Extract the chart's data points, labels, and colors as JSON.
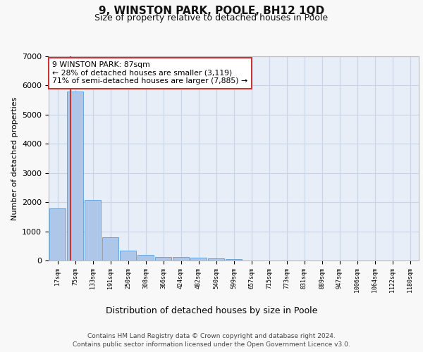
{
  "title": "9, WINSTON PARK, POOLE, BH12 1QD",
  "subtitle": "Size of property relative to detached houses in Poole",
  "xlabel": "Distribution of detached houses by size in Poole",
  "ylabel": "Number of detached properties",
  "bar_labels": [
    "17sqm",
    "75sqm",
    "133sqm",
    "191sqm",
    "250sqm",
    "308sqm",
    "366sqm",
    "424sqm",
    "482sqm",
    "540sqm",
    "599sqm",
    "657sqm",
    "715sqm",
    "773sqm",
    "831sqm",
    "889sqm",
    "947sqm",
    "1006sqm",
    "1064sqm",
    "1122sqm",
    "1180sqm"
  ],
  "bar_values": [
    1780,
    5800,
    2080,
    800,
    340,
    200,
    130,
    110,
    100,
    75,
    60,
    0,
    0,
    0,
    0,
    0,
    0,
    0,
    0,
    0,
    0
  ],
  "bar_color": "#aec6e8",
  "bar_edge_color": "#5b9bd5",
  "highlight_bar_index": 1,
  "highlight_color": "#cc3333",
  "annotation_text": "9 WINSTON PARK: 87sqm\n← 28% of detached houses are smaller (3,119)\n71% of semi-detached houses are larger (7,885) →",
  "annotation_box_color": "#ffffff",
  "annotation_box_edge": "#cc3333",
  "ylim": [
    0,
    7000
  ],
  "yticks": [
    0,
    1000,
    2000,
    3000,
    4000,
    5000,
    6000,
    7000
  ],
  "grid_color": "#c8d4e8",
  "background_color": "#e8eef8",
  "footer_line1": "Contains HM Land Registry data © Crown copyright and database right 2024.",
  "footer_line2": "Contains public sector information licensed under the Open Government Licence v3.0."
}
